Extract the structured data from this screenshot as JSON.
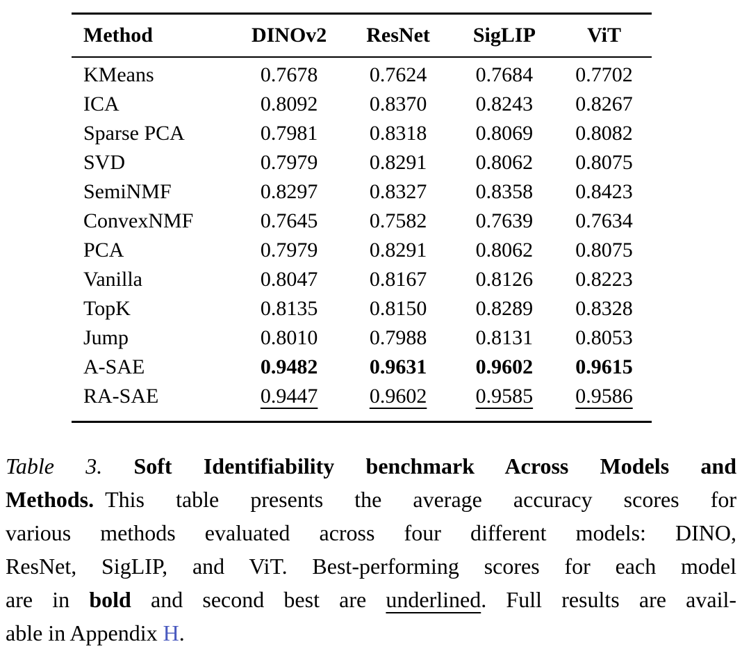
{
  "colors": {
    "text": "#000000",
    "link_blue": "#4a5abf",
    "background": "#ffffff",
    "rule": "#000000"
  },
  "table": {
    "headers": [
      "Method",
      "DINOv2",
      "ResNet",
      "SigLIP",
      "ViT"
    ],
    "rows": [
      {
        "method": "KMeans",
        "values": [
          "0.7678",
          "0.7624",
          "0.7684",
          "0.7702"
        ],
        "style": "normal"
      },
      {
        "method": "ICA",
        "values": [
          "0.8092",
          "0.8370",
          "0.8243",
          "0.8267"
        ],
        "style": "normal"
      },
      {
        "method": "Sparse PCA",
        "values": [
          "0.7981",
          "0.8318",
          "0.8069",
          "0.8082"
        ],
        "style": "normal"
      },
      {
        "method": "SVD",
        "values": [
          "0.7979",
          "0.8291",
          "0.8062",
          "0.8075"
        ],
        "style": "normal"
      },
      {
        "method": "SemiNMF",
        "values": [
          "0.8297",
          "0.8327",
          "0.8358",
          "0.8423"
        ],
        "style": "normal"
      },
      {
        "method": "ConvexNMF",
        "values": [
          "0.7645",
          "0.7582",
          "0.7639",
          "0.7634"
        ],
        "style": "normal"
      },
      {
        "method": "PCA",
        "values": [
          "0.7979",
          "0.8291",
          "0.8062",
          "0.8075"
        ],
        "style": "normal"
      },
      {
        "method": "Vanilla",
        "values": [
          "0.8047",
          "0.8167",
          "0.8126",
          "0.8223"
        ],
        "style": "normal"
      },
      {
        "method": "TopK",
        "values": [
          "0.8135",
          "0.8150",
          "0.8289",
          "0.8328"
        ],
        "style": "normal"
      },
      {
        "method": "Jump",
        "values": [
          "0.8010",
          "0.7988",
          "0.8131",
          "0.8053"
        ],
        "style": "normal"
      },
      {
        "method": "A-SAE",
        "values": [
          "0.9482",
          "0.9631",
          "0.9602",
          "0.9615"
        ],
        "style": "bold"
      },
      {
        "method": "RA-SAE",
        "values": [
          "0.9447",
          "0.9602",
          "0.9585",
          "0.9586"
        ],
        "style": "underline"
      }
    ]
  },
  "caption": {
    "label": "Table 3.",
    "title": "Soft Identifiability benchmark Across Models and Methods.",
    "full_text": "Table 3. Soft Identifiability benchmark Across Models and Methods. This table presents the average accuracy scores for various methods evaluated across four different models: DINO, ResNet, SigLIP, and ViT. Best-performing scores for each model are in bold and second best are underlined. Full results are available in Appendix H.",
    "lines": [
      [
        {
          "t": "Table 3. ",
          "s": "italic"
        },
        {
          "t": "Soft Identifiability benchmark Across Models and",
          "s": "bold"
        }
      ],
      [
        {
          "t": "Methods. ",
          "s": "bold"
        },
        {
          "t": "This table presents the average accuracy scores for",
          "s": "normal"
        }
      ],
      [
        {
          "t": "various methods evaluated across four different models: DINO,",
          "s": "normal"
        }
      ],
      [
        {
          "t": "ResNet, SigLIP, and ViT. Best-performing scores for each model",
          "s": "normal"
        }
      ],
      [
        {
          "t": "are in ",
          "s": "normal"
        },
        {
          "t": "bold",
          "s": "bold"
        },
        {
          "t": " and second best are ",
          "s": "normal"
        },
        {
          "t": "underlined",
          "s": "underline"
        },
        {
          "t": ". Full results are avail-",
          "s": "normal"
        }
      ],
      [
        {
          "t": "able in Appendix ",
          "s": "normal"
        },
        {
          "t": "H",
          "s": "link"
        },
        {
          "t": ".",
          "s": "normal"
        }
      ]
    ]
  }
}
